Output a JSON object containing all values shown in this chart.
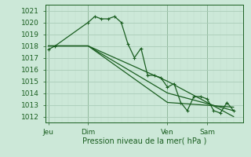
{
  "title": "",
  "xlabel": "Pression niveau de la mer( hPa )",
  "bg_color": "#cce8d8",
  "grid_color_major": "#aaccb8",
  "grid_color_minor": "#c0deca",
  "line_color": "#1a5e20",
  "ylim": [
    1011.5,
    1021.5
  ],
  "xlim": [
    -0.5,
    29.5
  ],
  "day_positions": [
    0,
    6,
    18,
    24
  ],
  "x_ticks": [
    0,
    6,
    18,
    24
  ],
  "x_tick_labels": [
    "Jeu",
    "Dim",
    "Ven",
    "Sam"
  ],
  "y_ticks": [
    1012,
    1013,
    1014,
    1015,
    1016,
    1017,
    1018,
    1019,
    1020,
    1021
  ],
  "lines": [
    {
      "x": [
        0,
        1,
        6,
        7,
        8,
        9,
        10,
        11,
        12,
        13,
        14,
        15,
        16,
        17,
        18,
        19,
        20,
        21,
        22,
        23,
        24,
        25,
        26,
        27,
        28
      ],
      "y": [
        1017.7,
        1018.0,
        1020.0,
        1020.5,
        1020.3,
        1020.3,
        1020.5,
        1020.0,
        1018.2,
        1017.0,
        1017.8,
        1015.5,
        1015.5,
        1015.3,
        1014.5,
        1014.8,
        1013.2,
        1012.5,
        1013.7,
        1013.7,
        1013.5,
        1012.5,
        1012.3,
        1013.2,
        1012.5
      ],
      "marker": true
    },
    {
      "x": [
        0,
        6,
        18,
        28
      ],
      "y": [
        1018.0,
        1018.0,
        1015.0,
        1012.0
      ],
      "marker": false
    },
    {
      "x": [
        0,
        6,
        18,
        28
      ],
      "y": [
        1018.0,
        1018.0,
        1014.0,
        1012.5
      ],
      "marker": false
    },
    {
      "x": [
        0,
        6,
        18,
        28
      ],
      "y": [
        1018.0,
        1018.0,
        1013.2,
        1012.8
      ],
      "marker": false
    }
  ]
}
